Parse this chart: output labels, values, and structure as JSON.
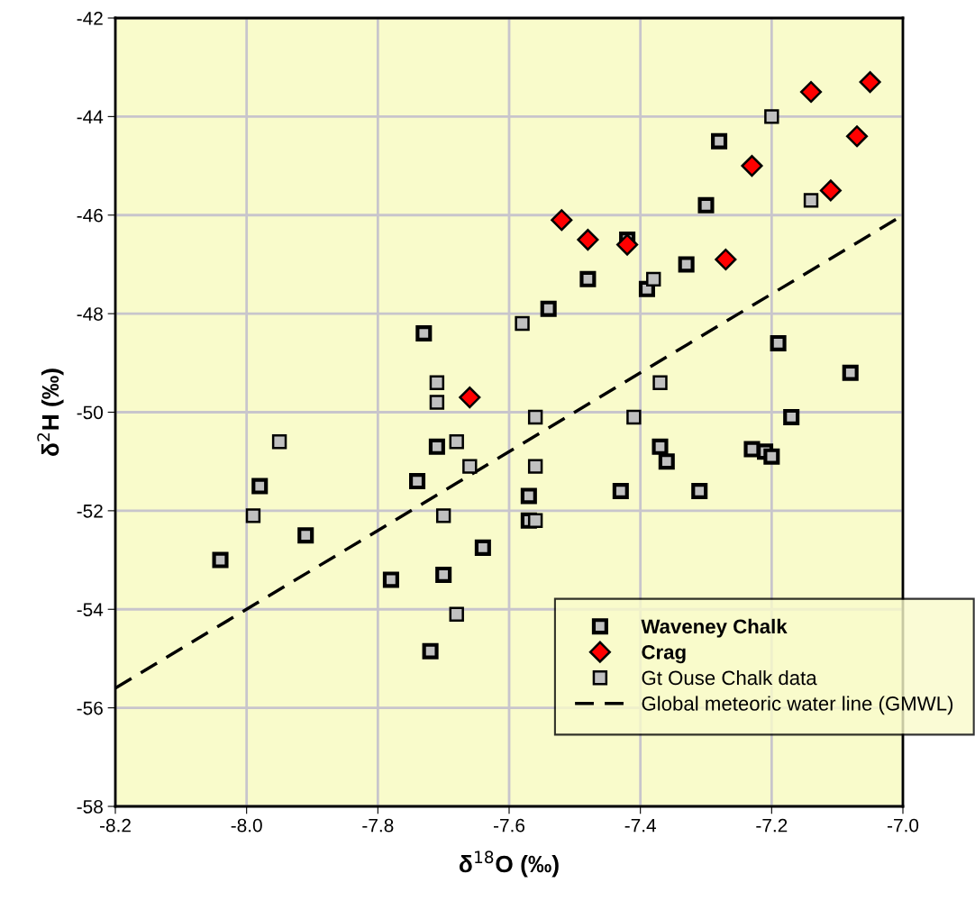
{
  "chart_data": {
    "type": "scatter",
    "xlabel": "δ$^{18}$O (‰)",
    "ylabel": "δ$^{2}$H (‰)",
    "xlim": [
      -8.2,
      -7.0
    ],
    "xticks": [
      {
        "value": -8.2,
        "label": "-8.2"
      },
      {
        "value": -8.0,
        "label": "-8.0"
      },
      {
        "value": -7.8,
        "label": "-7.8"
      },
      {
        "value": -7.6,
        "label": "-7.6"
      },
      {
        "value": -7.4,
        "label": "-7.4"
      },
      {
        "value": -7.2,
        "label": "-7.2"
      },
      {
        "value": -7.0,
        "label": "-7.0"
      }
    ],
    "ylim": [
      -58,
      -42
    ],
    "yticks": [
      -58,
      -56,
      -54,
      -52,
      -50,
      -48,
      -46,
      -44,
      -42
    ],
    "grid": true,
    "legend": "bottom right",
    "series": [
      {
        "name": "Waveney Chalk",
        "marker": "square",
        "color": "#c0c0c0",
        "x": [
          -8.04,
          -7.98,
          -7.91,
          -7.73,
          -7.71,
          -7.74,
          -7.64,
          -7.78,
          -7.7,
          -7.72,
          -7.28,
          -7.3,
          -7.42,
          -7.33,
          -7.48,
          -7.39,
          -7.54,
          -7.19,
          -7.08,
          -7.17,
          -7.37,
          -7.36,
          -7.57,
          -7.43,
          -7.31,
          -7.57,
          -7.23,
          -7.21,
          -7.2
        ],
        "values": [
          -53.0,
          -51.5,
          -52.5,
          -48.4,
          -50.7,
          -51.4,
          -52.75,
          -53.4,
          -53.3,
          -54.85,
          -44.5,
          -45.8,
          -46.5,
          -47.0,
          -47.3,
          -47.5,
          -47.9,
          -48.6,
          -49.2,
          -50.1,
          -50.7,
          -51.0,
          -51.7,
          -51.6,
          -51.6,
          -52.2,
          -50.75,
          -50.8,
          -50.9
        ]
      },
      {
        "name": "Crag",
        "marker": "diamond",
        "color": "#ff0000",
        "x": [
          -7.05,
          -7.14,
          -7.07,
          -7.23,
          -7.11,
          -7.52,
          -7.48,
          -7.42,
          -7.27,
          -7.66
        ],
        "values": [
          -43.3,
          -43.5,
          -44.4,
          -45.0,
          -45.5,
          -46.1,
          -46.5,
          -46.6,
          -46.9,
          -49.7
        ]
      },
      {
        "name": "Gt Ouse Chalk data",
        "marker": "square",
        "color": "#c0c0c0",
        "x": [
          -7.95,
          -7.99,
          -7.68,
          -7.66,
          -7.7,
          -7.68,
          -7.2,
          -7.14,
          -7.38,
          -7.58,
          -7.37,
          -7.56,
          -7.41,
          -7.56,
          -7.56,
          -7.71,
          -7.71
        ],
        "values": [
          -50.6,
          -52.1,
          -50.6,
          -51.1,
          -52.1,
          -54.1,
          -44.0,
          -45.7,
          -47.3,
          -48.2,
          -49.4,
          -50.1,
          -50.1,
          -51.1,
          -52.2,
          -49.4,
          -49.8
        ]
      },
      {
        "name": "Global meteoric water line (GMWL)",
        "type": "line",
        "line_style": "dashed",
        "marker": "none",
        "color": "#000000",
        "x": [
          -8.2,
          -7.0
        ],
        "values": [
          -55.6,
          -46.0
        ]
      }
    ]
  }
}
